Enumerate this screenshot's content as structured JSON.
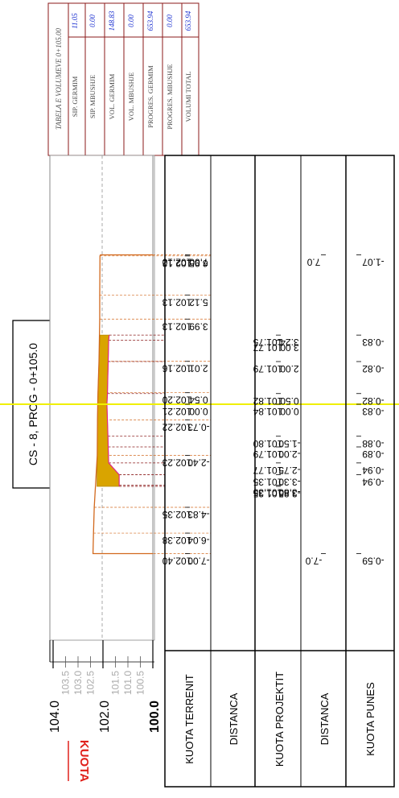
{
  "section_title": "CS - 8, PROG - 0+105.0",
  "axis": {
    "label": "KUOTA",
    "label_color": "#e0201a",
    "major_ticks": [
      "104.0",
      "102.0",
      "100.0"
    ],
    "minor_ticks": [
      "103.5",
      "103.0",
      "102.5",
      "101.5",
      "101.0",
      "100.5"
    ]
  },
  "volume_table": {
    "title": "TABELA E VOLUMEVE 0+105.00",
    "rows": [
      {
        "label": "SIP. GERMIM",
        "value": "11.05"
      },
      {
        "label": "SIP. MBUSHJE",
        "value": "0.00"
      },
      {
        "label": "VOL. GERMIM",
        "value": "148.83"
      },
      {
        "label": "VOL. MBUSHJE",
        "value": "0.00"
      },
      {
        "label": "PROGRES. GERMIM",
        "value": "653.94"
      },
      {
        "label": "PROGRES. MBUSHJE",
        "value": "0.00"
      },
      {
        "label": "VOLUMI TOTAL",
        "value": "653.94"
      }
    ],
    "value_color": "#1a2fd0",
    "border_color": "#8b1a1a"
  },
  "band_labels": [
    "KUOTA TERRENIT",
    "DISTANCA",
    "KUOTA PROJEKTIT",
    "DISTANCA",
    "KUOTA PUNES"
  ],
  "terrain_points": [
    {
      "dist": "-7.00",
      "elev": "102.40"
    },
    {
      "dist": "-6.04",
      "elev": "102.38"
    },
    {
      "dist": "-4.83",
      "elev": "102.35"
    },
    {
      "dist": "-2.40",
      "elev": "102.23"
    },
    {
      "dist": "-0.73",
      "elev": "102.22"
    },
    {
      "dist": "0.00",
      "elev": "102.21"
    },
    {
      "dist": "0.54",
      "elev": "102.20"
    },
    {
      "dist": "2.01",
      "elev": "102.16"
    },
    {
      "dist": "3.99",
      "elev": "102.13"
    },
    {
      "dist": "5.12",
      "elev": "102.13"
    },
    {
      "dist": "6.95",
      "elev": "102.12"
    },
    {
      "dist": "7.00",
      "elev": "102.10"
    }
  ],
  "project_points": [
    {
      "dist": "-3.85",
      "elev": "101.35"
    },
    {
      "dist": "-3.80",
      "elev": "101.35"
    },
    {
      "dist": "-3.30",
      "elev": "101.35"
    },
    {
      "dist": "-2.75",
      "elev": "101.77"
    },
    {
      "dist": "-2.00",
      "elev": "101.79"
    },
    {
      "dist": "-1.50",
      "elev": "101.80"
    },
    {
      "dist": "0.00",
      "elev": "101.84"
    },
    {
      "dist": "0.50",
      "elev": "101.82"
    },
    {
      "dist": "2.00",
      "elev": "101.79"
    },
    {
      "dist": "3.00",
      "elev": "101.77"
    },
    {
      "dist": "3.24",
      "elev": "101.75"
    }
  ],
  "design_distances": [
    "-7.0",
    "7.0"
  ],
  "work_heights": [
    "-0.59",
    "-0.94",
    "-0.94",
    "-0.89",
    "-0.88",
    "-0.83",
    "-0.82",
    "-0.82",
    "-0.83",
    "-1.07"
  ]
}
